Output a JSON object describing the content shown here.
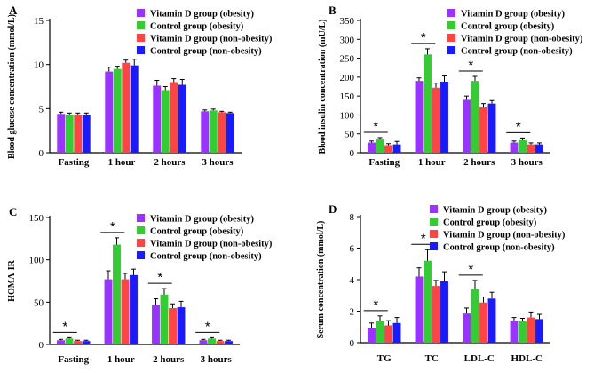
{
  "colors": {
    "series": [
      "#9933ff",
      "#33cc33",
      "#ff4444",
      "#1a1aff"
    ]
  },
  "chart_data": [
    {
      "type": "bar",
      "panel_label": "A",
      "ylabel": "Blood glucose concentration (mmol/L)",
      "ylim": [
        0,
        15
      ],
      "yticks": [
        0,
        5,
        10,
        15
      ],
      "categories": [
        "Fasting",
        "1 hour",
        "2 hours",
        "3 hours"
      ],
      "series": [
        {
          "name": "Vitamin D group (obesity)",
          "values": [
            4.4,
            9.2,
            7.6,
            4.7
          ],
          "errors": [
            0.2,
            0.5,
            0.6,
            0.15
          ]
        },
        {
          "name": "Control group (obesity)",
          "values": [
            4.3,
            9.5,
            7.1,
            4.8
          ],
          "errors": [
            0.2,
            0.3,
            0.4,
            0.15
          ]
        },
        {
          "name": "Vitamin D group (non-obesity)",
          "values": [
            4.3,
            10.2,
            8.0,
            4.6
          ],
          "errors": [
            0.2,
            0.3,
            0.4,
            0.1
          ]
        },
        {
          "name": "Control group (non-obesity)",
          "values": [
            4.3,
            9.9,
            7.7,
            4.5
          ],
          "errors": [
            0.2,
            0.7,
            0.6,
            0.1
          ]
        }
      ],
      "significance": []
    },
    {
      "type": "bar",
      "panel_label": "B",
      "ylabel": "Blood insulin concentration (mU/L)",
      "ylim": [
        0,
        350
      ],
      "yticks": [
        0,
        50,
        100,
        150,
        200,
        250,
        300,
        350
      ],
      "categories": [
        "Fasting",
        "1 hour",
        "2 hours",
        "3 hours"
      ],
      "series": [
        {
          "name": "Vitamin D group (obesity)",
          "values": [
            27,
            190,
            140,
            27
          ],
          "errors": [
            4,
            8,
            10,
            4
          ]
        },
        {
          "name": "Control group (obesity)",
          "values": [
            35,
            260,
            190,
            33
          ],
          "errors": [
            5,
            15,
            12,
            6
          ]
        },
        {
          "name": "Vitamin D group (non-obesity)",
          "values": [
            20,
            172,
            120,
            22
          ],
          "errors": [
            4,
            12,
            10,
            4
          ]
        },
        {
          "name": "Control group (non-obesity)",
          "values": [
            22,
            188,
            130,
            22
          ],
          "errors": [
            8,
            15,
            8,
            4
          ]
        }
      ],
      "significance": [
        0,
        1,
        2,
        3
      ]
    },
    {
      "type": "bar",
      "panel_label": "C",
      "ylabel": "HOMA-IR",
      "ylim": [
        0,
        150
      ],
      "yticks": [
        0,
        50,
        100,
        150
      ],
      "categories": [
        "Fasting",
        "1 hour",
        "2 hours",
        "3 hours"
      ],
      "series": [
        {
          "name": "Vitamin D group (obesity)",
          "values": [
            5,
            77,
            47,
            5
          ],
          "errors": [
            1,
            10,
            7,
            1
          ]
        },
        {
          "name": "Control group (obesity)",
          "values": [
            7,
            118,
            59,
            7
          ],
          "errors": [
            1,
            8,
            7,
            1
          ]
        },
        {
          "name": "Vitamin D group (non-obesity)",
          "values": [
            4,
            77,
            43,
            4
          ],
          "errors": [
            1,
            7,
            5,
            1
          ]
        },
        {
          "name": "Control group (non-obesity)",
          "values": [
            4,
            82,
            44,
            4
          ],
          "errors": [
            1,
            7,
            7,
            1
          ]
        }
      ],
      "significance": [
        0,
        1,
        2,
        3
      ]
    },
    {
      "type": "bar",
      "panel_label": "D",
      "ylabel": "Serum concentration (mmol/L)",
      "ylim": [
        0,
        8
      ],
      "yticks": [
        0,
        2,
        4,
        6,
        8
      ],
      "categories": [
        "TG",
        "TC",
        "LDL-C",
        "HDL-C"
      ],
      "series": [
        {
          "name": "Vitamin D group (obesity)",
          "values": [
            0.95,
            4.2,
            1.85,
            1.4
          ],
          "errors": [
            0.3,
            0.55,
            0.35,
            0.2
          ]
        },
        {
          "name": "Control group (obesity)",
          "values": [
            1.4,
            5.2,
            3.4,
            1.35
          ],
          "errors": [
            0.3,
            0.7,
            0.55,
            0.2
          ]
        },
        {
          "name": "Vitamin D group (non-obesity)",
          "values": [
            1.1,
            3.6,
            2.55,
            1.6
          ],
          "errors": [
            0.3,
            0.35,
            0.35,
            0.35
          ]
        },
        {
          "name": "Control group (non-obesity)",
          "values": [
            1.25,
            3.9,
            2.8,
            1.5
          ],
          "errors": [
            0.35,
            0.6,
            0.4,
            0.3
          ]
        }
      ],
      "significance": [
        0,
        1,
        2
      ]
    }
  ]
}
